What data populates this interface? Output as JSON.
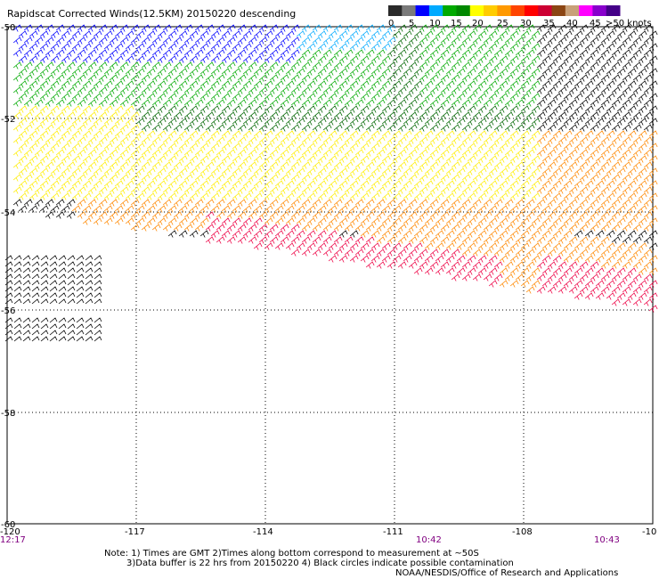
{
  "title": "Rapidscat Corrected Winds(12.5KM) 20150220 descending",
  "colorbar": {
    "labels": [
      "0",
      "5",
      "10",
      "15",
      "20",
      "25",
      "30",
      "35",
      "40",
      "45",
      ">50 knots"
    ],
    "colors": [
      "#2a2a2a",
      "#7a7a7a",
      "#0000ff",
      "#00aaff",
      "#00aa00",
      "#008800",
      "#ffff00",
      "#ffcc00",
      "#ff9900",
      "#ff4400",
      "#ff0000",
      "#cc0033",
      "#8b4513",
      "#c8a078",
      "#ff00ff",
      "#8800cc",
      "#440088"
    ]
  },
  "axes": {
    "lon_ticks": [
      "-120",
      "-117",
      "-114",
      "-111",
      "-108",
      "-10"
    ],
    "lat_ticks": [
      "-50",
      "-52",
      "-54",
      "-56",
      "-58",
      "-60"
    ],
    "times": [
      {
        "label": "12:17"
      },
      {
        "label": "10:42"
      },
      {
        "label": "10:43"
      }
    ]
  },
  "notes": {
    "line1": "Note: 1) Times are GMT 2)Times along bottom correspond to measurement at ~50S",
    "line2": "3)Data buffer is 22 hrs from 20150220 4) Black circles indicate possible contamination",
    "credit": "NOAA/NESDIS/Office of Research and Applications"
  },
  "wind_colors": {
    "black": "#000000",
    "blue": "#0000ff",
    "cyan": "#00aaff",
    "green": "#00aa00",
    "darkgreen": "#006600",
    "yellow": "#ffee00",
    "orange": "#ff8800",
    "red": "#ee0044"
  }
}
